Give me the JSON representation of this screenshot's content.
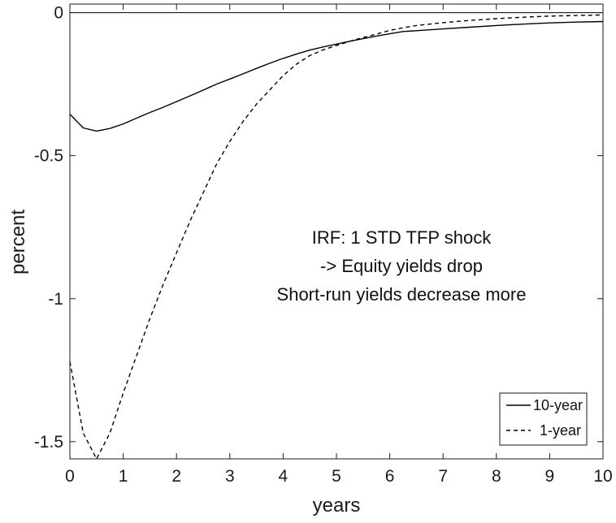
{
  "chart_data": {
    "type": "line",
    "xlabel": "years",
    "ylabel": "percent",
    "xlim": [
      0,
      10
    ],
    "ylim": [
      -1.56,
      0.03
    ],
    "xticks": [
      0,
      1,
      2,
      3,
      4,
      5,
      6,
      7,
      8,
      9,
      10
    ],
    "xtick_labels": [
      "0",
      "1",
      "2",
      "3",
      "4",
      "5",
      "6",
      "7",
      "8",
      "9",
      "10"
    ],
    "yticks": [
      0,
      -0.5,
      -1,
      -1.5
    ],
    "ytick_labels": [
      "0",
      "-0.5",
      "-1",
      "-1.5"
    ],
    "grid": false,
    "legend_position": "bottom-right",
    "annotation": [
      "IRF: 1 STD TFP shock",
      "-> Equity yields drop",
      "Short-run yields decrease more"
    ],
    "zero_line": 0,
    "series": [
      {
        "name": "10-year",
        "style": "solid",
        "color": "#000000",
        "x": [
          0,
          0.25,
          0.5,
          0.75,
          1,
          1.25,
          1.5,
          1.75,
          2,
          2.25,
          2.5,
          2.75,
          3,
          3.25,
          3.5,
          3.75,
          4,
          4.25,
          4.5,
          4.75,
          5,
          5.25,
          5.5,
          5.75,
          6,
          6.25,
          6.5,
          7,
          7.5,
          8,
          8.5,
          9,
          9.5,
          10
        ],
        "values": [
          -0.355,
          -0.403,
          -0.414,
          -0.405,
          -0.389,
          -0.369,
          -0.349,
          -0.331,
          -0.311,
          -0.291,
          -0.271,
          -0.25,
          -0.232,
          -0.214,
          -0.195,
          -0.177,
          -0.16,
          -0.145,
          -0.131,
          -0.12,
          -0.11,
          -0.1,
          -0.091,
          -0.082,
          -0.074,
          -0.066,
          -0.063,
          -0.057,
          -0.051,
          -0.045,
          -0.04,
          -0.036,
          -0.033,
          -0.031
        ]
      },
      {
        "name": "1-year",
        "style": "dashed",
        "color": "#000000",
        "x": [
          0,
          0.25,
          0.5,
          0.75,
          1,
          1.25,
          1.5,
          1.75,
          2,
          2.25,
          2.5,
          2.75,
          3,
          3.25,
          3.5,
          3.75,
          4,
          4.25,
          4.5,
          4.75,
          5,
          5.25,
          5.5,
          5.75,
          6,
          6.25,
          6.5,
          7,
          7.5,
          8,
          8.5,
          9,
          9.5,
          10
        ],
        "values": [
          -1.22,
          -1.47,
          -1.56,
          -1.47,
          -1.33,
          -1.2,
          -1.07,
          -0.95,
          -0.84,
          -0.73,
          -0.63,
          -0.53,
          -0.45,
          -0.38,
          -0.32,
          -0.27,
          -0.22,
          -0.18,
          -0.15,
          -0.13,
          -0.115,
          -0.1,
          -0.087,
          -0.075,
          -0.062,
          -0.053,
          -0.045,
          -0.035,
          -0.027,
          -0.021,
          -0.016,
          -0.012,
          -0.01,
          -0.008
        ]
      }
    ]
  }
}
